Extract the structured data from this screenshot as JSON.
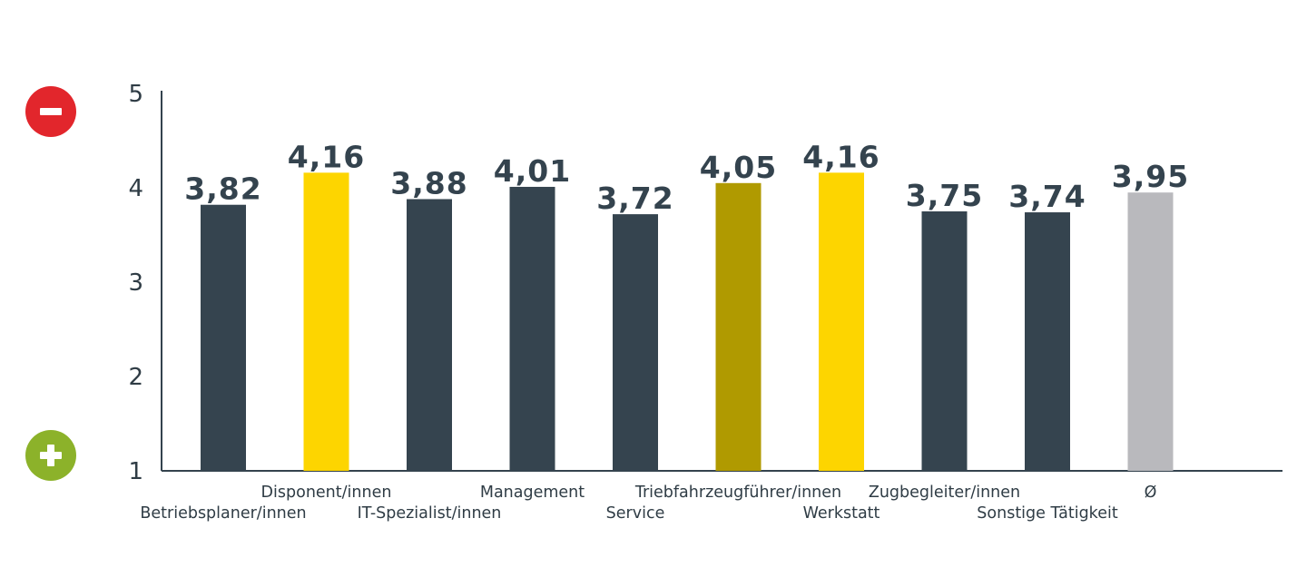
{
  "chart_data": {
    "type": "bar",
    "title": "",
    "xlabel": "",
    "ylabel": "",
    "ylim": [
      1,
      5
    ],
    "yticks": [
      "1",
      "2",
      "3",
      "4",
      "5"
    ],
    "grid": false,
    "categories": [
      "Betriebsplaner/innen",
      "Disponent/innen",
      "IT-Spezialist/innen",
      "Management",
      "Service",
      "Triebfahrzeugführer/innen",
      "Werkstatt",
      "Zugbegleiter/innen",
      "Sonstige Tätigkeit",
      "Ø"
    ],
    "values": [
      3.82,
      4.16,
      3.88,
      4.01,
      3.72,
      4.05,
      4.16,
      3.75,
      3.74,
      3.95
    ],
    "value_labels": [
      "3,82",
      "4,16",
      "3,88",
      "4,01",
      "3,72",
      "4,05",
      "4,16",
      "3,75",
      "3,74",
      "3,95"
    ],
    "colors": [
      "#35444f",
      "#fdd500",
      "#35444f",
      "#35444f",
      "#35444f",
      "#b09a00",
      "#fdd500",
      "#35444f",
      "#35444f",
      "#b9b9bd"
    ]
  },
  "indicators": {
    "minus": {
      "name": "minus-icon",
      "color": "#e2262c"
    },
    "plus": {
      "name": "plus-icon",
      "color": "#8cb22a"
    }
  }
}
